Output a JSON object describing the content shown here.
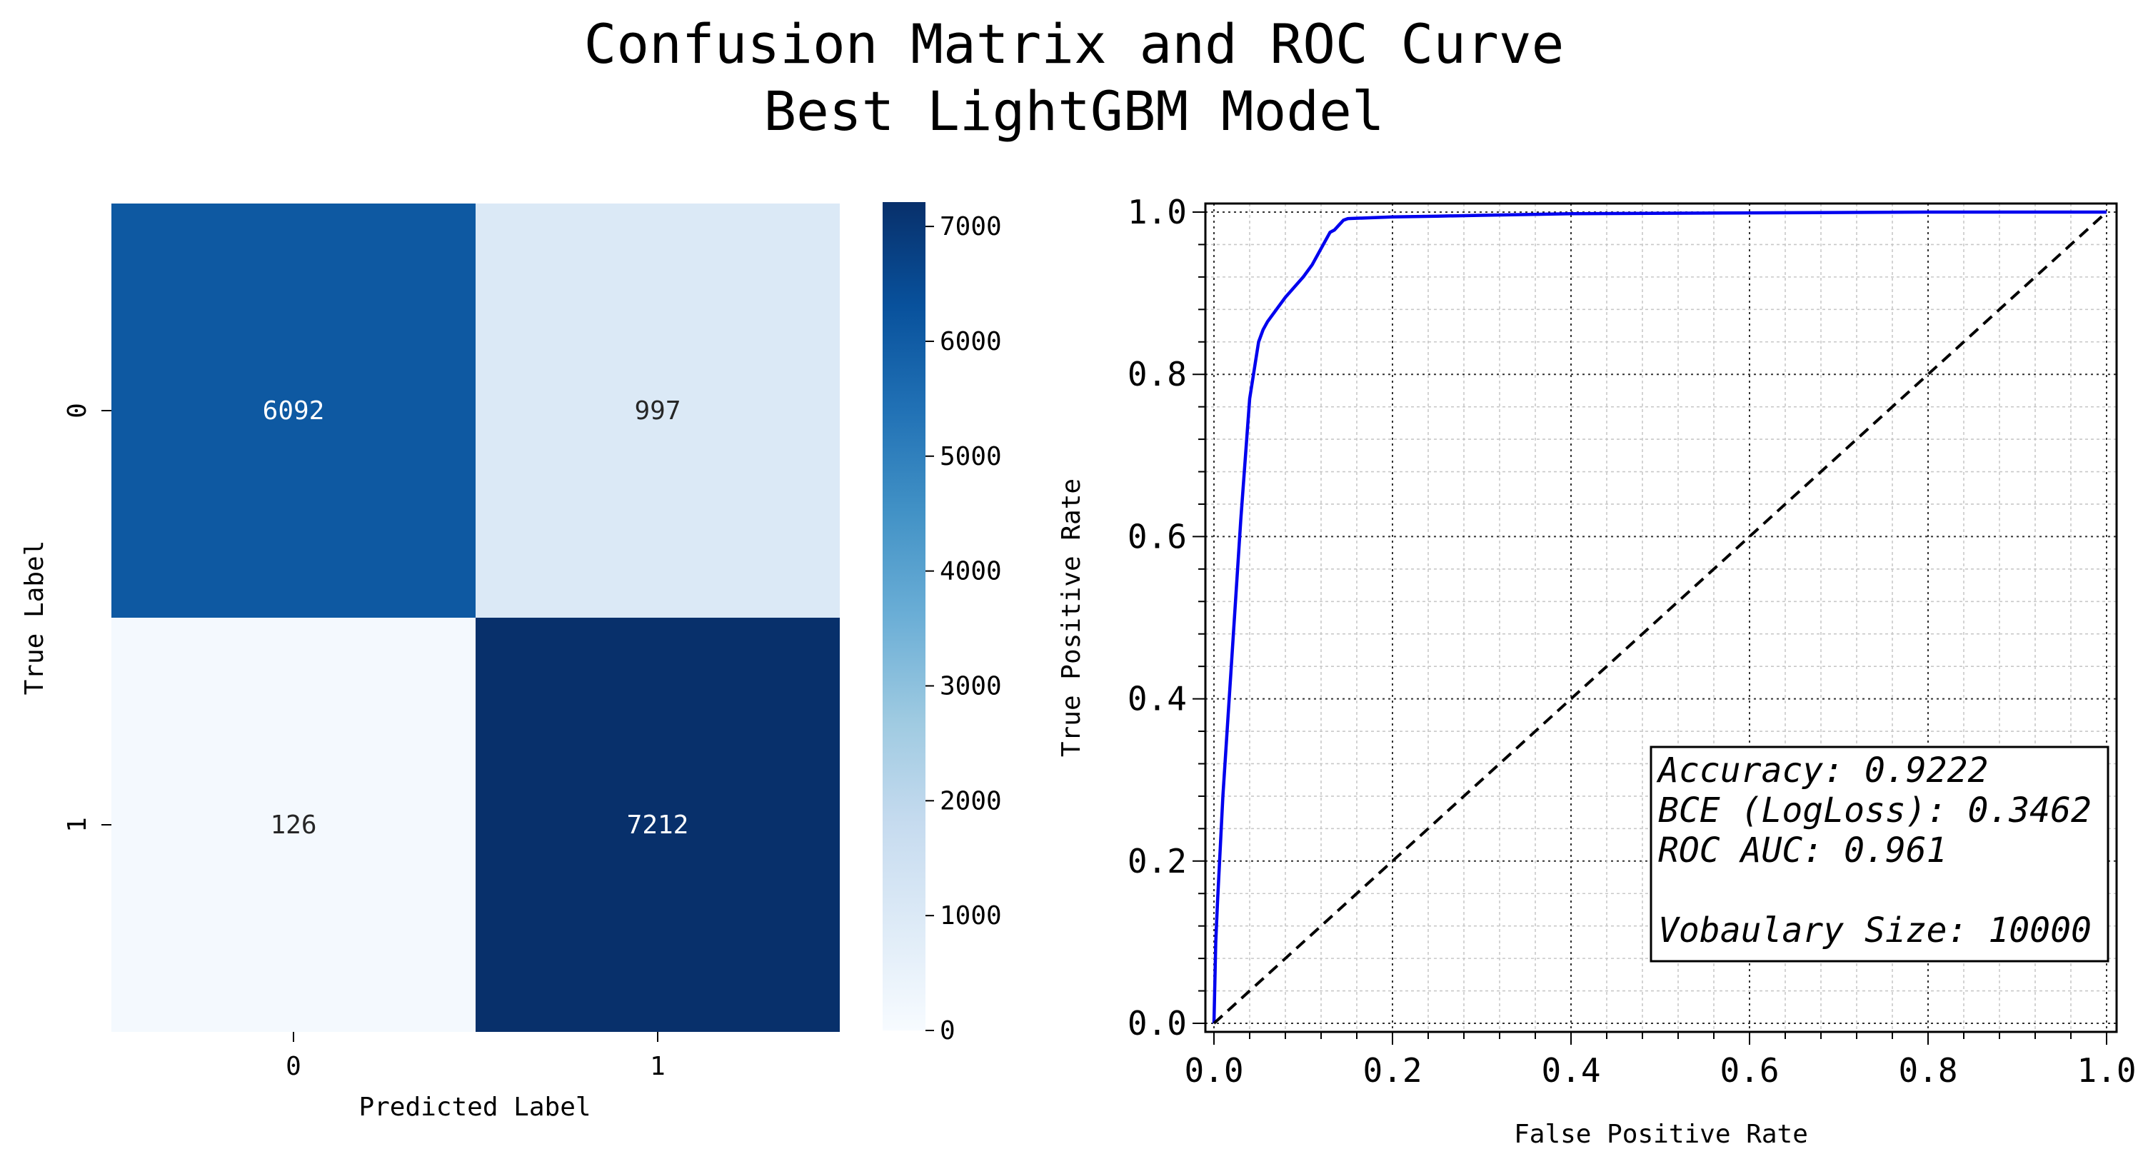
{
  "figure": {
    "title_line1": "Confusion Matrix and ROC Curve",
    "title_line2": "Best LightGBM Model"
  },
  "chart_data": [
    {
      "type": "heatmap",
      "xlabel": "Predicted Label",
      "ylabel": "True Label",
      "x_categories": [
        "0",
        "1"
      ],
      "y_categories": [
        "0",
        "1"
      ],
      "values": [
        [
          6092,
          997
        ],
        [
          126,
          7212
        ]
      ],
      "colormap": "Blues",
      "colorbar": {
        "range": [
          0,
          7212
        ],
        "ticks": [
          0,
          1000,
          2000,
          3000,
          4000,
          5000,
          6000,
          7000
        ],
        "tick_labels": [
          "0",
          "1000",
          "2000",
          "3000",
          "4000",
          "5000",
          "6000",
          "7000"
        ]
      }
    },
    {
      "type": "line",
      "xlabel": "False Positive Rate",
      "ylabel": "True Positive Rate",
      "xlim": [
        0,
        1
      ],
      "ylim": [
        0,
        1
      ],
      "x_ticks": [
        "0.0",
        "0.2",
        "0.4",
        "0.6",
        "0.8",
        "1.0"
      ],
      "y_ticks": [
        "0.0",
        "0.2",
        "0.4",
        "0.6",
        "0.8",
        "1.0"
      ],
      "grid": true,
      "series": [
        {
          "color": "#0000ee",
          "style": "solid",
          "x": [
            0,
            0.002,
            0.004,
            0.01,
            0.02,
            0.03,
            0.04,
            0.05,
            0.055,
            0.06,
            0.08,
            0.1,
            0.11,
            0.12,
            0.13,
            0.135,
            0.14,
            0.145,
            0.15,
            0.2,
            0.25,
            0.3,
            0.4,
            0.6,
            0.8,
            1.0
          ],
          "y": [
            0,
            0.1,
            0.15,
            0.28,
            0.45,
            0.62,
            0.77,
            0.84,
            0.855,
            0.865,
            0.895,
            0.92,
            0.935,
            0.955,
            0.975,
            0.978,
            0.984,
            0.99,
            0.992,
            0.994,
            0.995,
            0.996,
            0.998,
            0.999,
            1.0,
            1.0
          ]
        },
        {
          "color": "#000000",
          "style": "dashed",
          "x": [
            0,
            1
          ],
          "y": [
            0,
            1
          ]
        }
      ],
      "stats_box": {
        "lines": [
          "Accuracy: 0.9222",
          "BCE (LogLoss): 0.3462",
          "ROC AUC: 0.961",
          "",
          "Vobaulary Size: 10000"
        ],
        "placement": "lower-right"
      }
    }
  ]
}
